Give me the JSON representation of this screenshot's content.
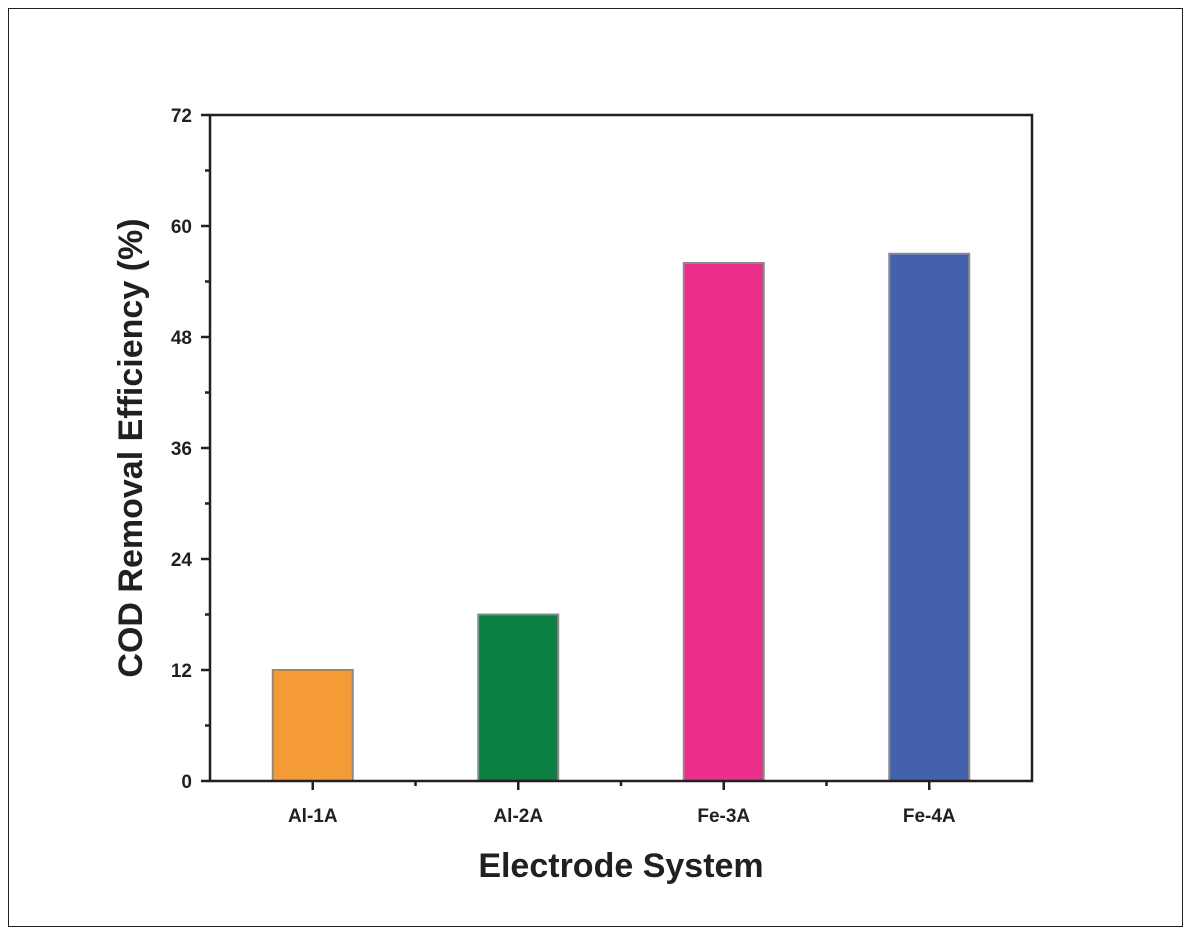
{
  "chart_data": {
    "type": "bar",
    "title": "",
    "xlabel": "Electrode System",
    "ylabel": "COD Removal Efficiency (%)",
    "categories": [
      "Al-1A",
      "Al-2A",
      "Fe-3A",
      "Fe-4A"
    ],
    "values": [
      12,
      18,
      56,
      57
    ],
    "colors": [
      "#f59b36",
      "#0b7f42",
      "#ec2f8b",
      "#4462ac"
    ],
    "ylim": [
      0,
      72
    ],
    "yticks": [
      0,
      12,
      24,
      36,
      48,
      60,
      72
    ],
    "grid": false,
    "legend": "none"
  }
}
